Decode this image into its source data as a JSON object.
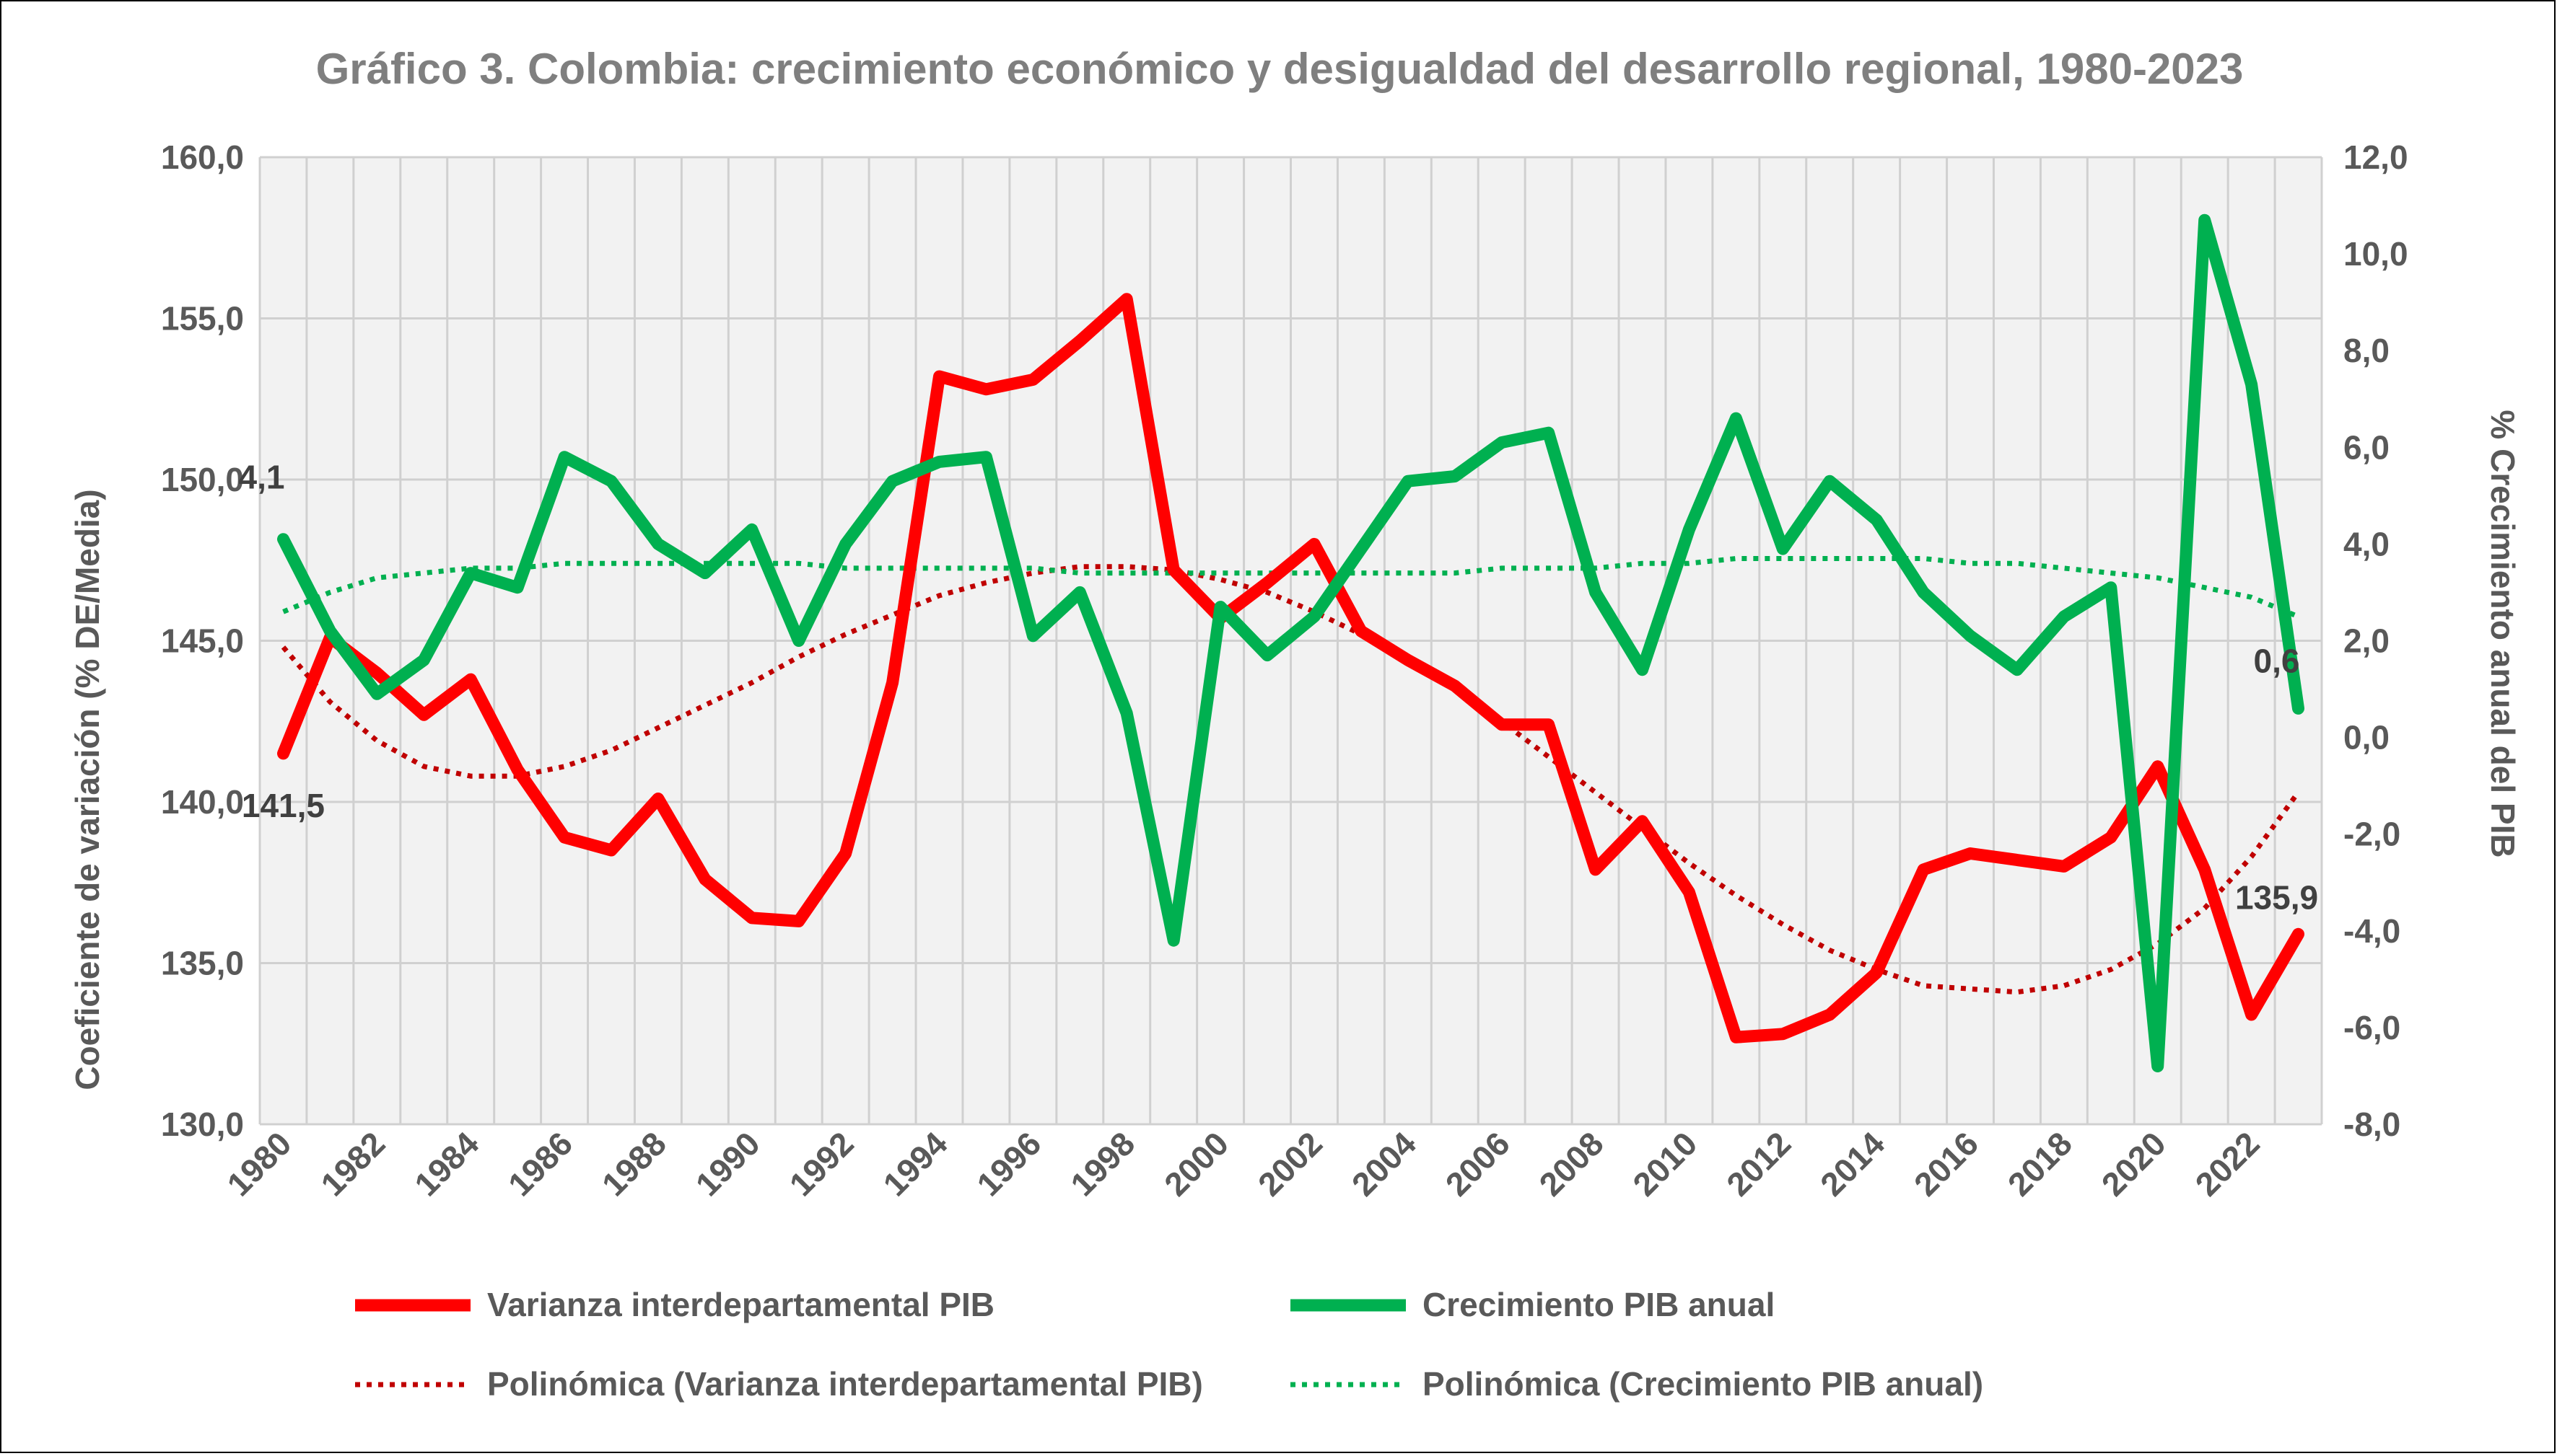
{
  "chart_data": {
    "type": "line",
    "title": "Gráfico 3. Colombia: crecimiento económico y desigualdad del desarrollo regional, 1980-2023",
    "ylabel": "Coeficiente de variación (% DE/Media)",
    "y2label": "% Crecimiento anual del PIB",
    "ylim": [
      130,
      160
    ],
    "y2lim": [
      -8,
      12
    ],
    "y_ticks": [
      "130,0",
      "135,0",
      "140,0",
      "145,0",
      "150,0",
      "155,0",
      "160,0"
    ],
    "y2_ticks": [
      "-8,0",
      "-6,0",
      "-4,0",
      "-2,0",
      "0,0",
      "2,0",
      "4,0",
      "6,0",
      "8,0",
      "10,0",
      "12,0"
    ],
    "x_tick_labels": [
      "1980",
      "1982",
      "1984",
      "1986",
      "1988",
      "1990",
      "1992",
      "1994",
      "1996",
      "1998",
      "2000",
      "2002",
      "2004",
      "2006",
      "2008",
      "2010",
      "2012",
      "2014",
      "2016",
      "2018",
      "2020",
      "2022"
    ],
    "x": [
      1980,
      1981,
      1982,
      1983,
      1984,
      1985,
      1986,
      1987,
      1988,
      1989,
      1990,
      1991,
      1992,
      1993,
      1994,
      1995,
      1996,
      1997,
      1998,
      1999,
      2000,
      2001,
      2002,
      2003,
      2004,
      2005,
      2006,
      2007,
      2008,
      2009,
      2010,
      2011,
      2012,
      2013,
      2014,
      2015,
      2016,
      2017,
      2018,
      2019,
      2020,
      2021,
      2022,
      2023
    ],
    "grid": true,
    "series": [
      {
        "name": "Varianza interdepartamental PIB",
        "axis": "left",
        "color": "#ff0000",
        "style": "solid",
        "values": [
          141.5,
          145.1,
          144.0,
          142.7,
          143.8,
          141.0,
          138.9,
          138.5,
          140.1,
          137.6,
          136.4,
          136.3,
          138.4,
          143.7,
          153.2,
          152.8,
          153.1,
          154.3,
          155.6,
          147.2,
          145.7,
          146.8,
          148.0,
          145.3,
          144.4,
          143.6,
          142.4,
          142.4,
          137.9,
          139.4,
          137.2,
          132.7,
          132.8,
          133.4,
          134.7,
          137.9,
          138.4,
          138.2,
          138.0,
          138.9,
          141.1,
          137.9,
          133.4,
          135.9
        ]
      },
      {
        "name": "Crecimiento PIB anual",
        "axis": "right",
        "color": "#00b050",
        "style": "solid",
        "values": [
          4.1,
          2.2,
          0.9,
          1.6,
          3.4,
          3.1,
          5.8,
          5.3,
          4.0,
          3.4,
          4.3,
          2.0,
          4.0,
          5.3,
          5.7,
          5.8,
          2.1,
          3.0,
          0.5,
          -4.2,
          2.7,
          1.7,
          2.5,
          3.9,
          5.3,
          5.4,
          6.1,
          6.3,
          3.0,
          1.4,
          4.3,
          6.6,
          3.9,
          5.3,
          4.5,
          3.0,
          2.1,
          1.4,
          2.5,
          3.1,
          -6.8,
          10.7,
          7.3,
          0.6
        ]
      },
      {
        "name": "Polinómica (Varianza interdepartamental PIB)",
        "axis": "left",
        "color": "#c00000",
        "style": "dotted",
        "values": [
          144.8,
          143.1,
          141.9,
          141.1,
          140.8,
          140.8,
          141.1,
          141.6,
          142.3,
          143.0,
          143.7,
          144.5,
          145.2,
          145.8,
          146.4,
          146.8,
          147.1,
          147.3,
          147.3,
          147.2,
          146.9,
          146.5,
          145.9,
          145.2,
          144.4,
          143.5,
          142.5,
          141.4,
          140.3,
          139.2,
          138.1,
          137.1,
          136.2,
          135.4,
          134.8,
          134.3,
          134.2,
          134.1,
          134.3,
          134.8,
          135.6,
          136.7,
          138.3,
          140.3
        ]
      },
      {
        "name": "Polinómica (Crecimiento PIB anual)",
        "axis": "right",
        "color": "#00b050",
        "style": "dotted",
        "values": [
          2.6,
          3.0,
          3.3,
          3.4,
          3.5,
          3.5,
          3.6,
          3.6,
          3.6,
          3.6,
          3.6,
          3.6,
          3.5,
          3.5,
          3.5,
          3.5,
          3.5,
          3.4,
          3.4,
          3.4,
          3.4,
          3.4,
          3.4,
          3.4,
          3.4,
          3.4,
          3.5,
          3.5,
          3.5,
          3.6,
          3.6,
          3.7,
          3.7,
          3.7,
          3.7,
          3.7,
          3.6,
          3.6,
          3.5,
          3.4,
          3.3,
          3.1,
          2.9,
          2.5
        ]
      }
    ],
    "data_labels": [
      {
        "series": 0,
        "index": 0,
        "text": "141,5"
      },
      {
        "series": 0,
        "index": 43,
        "text": "135,9"
      },
      {
        "series": 1,
        "index": 0,
        "text": "4,1"
      },
      {
        "series": 1,
        "index": 43,
        "text": "0,6"
      }
    ],
    "legend": {
      "position": "bottom",
      "items": [
        "Varianza interdepartamental PIB",
        "Crecimiento PIB anual",
        "Polinómica (Varianza interdepartamental PIB)",
        "Polinómica (Crecimiento PIB anual)"
      ]
    }
  }
}
